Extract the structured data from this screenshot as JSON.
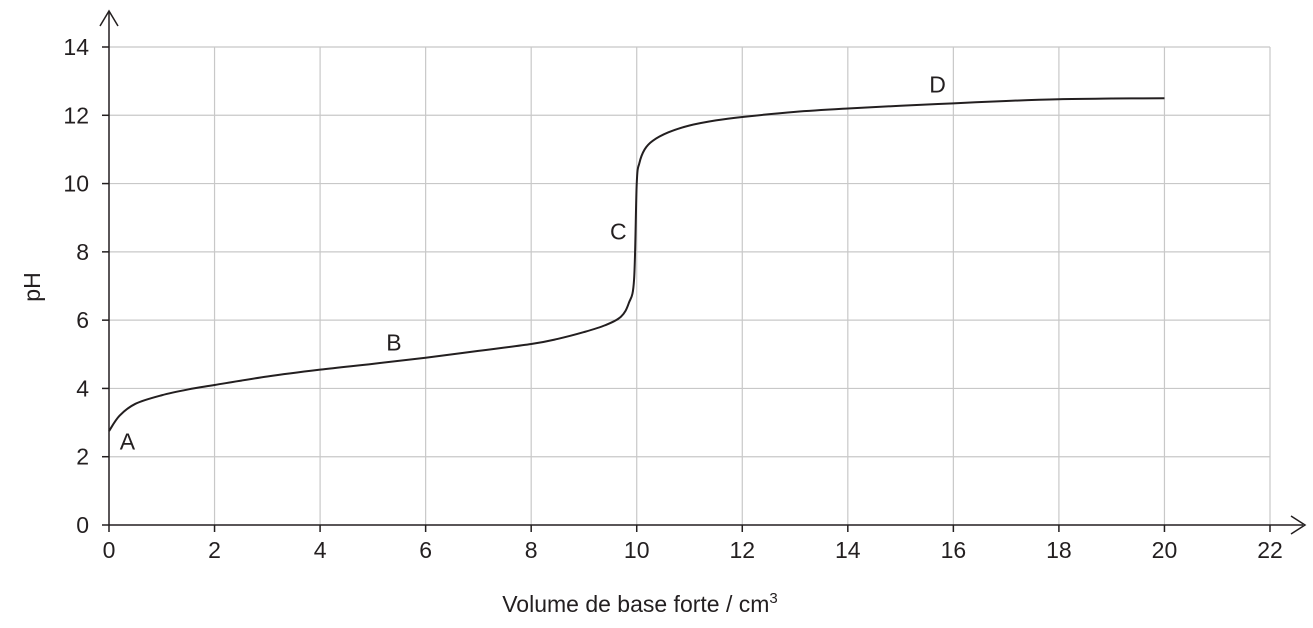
{
  "chart_data": {
    "type": "line",
    "xlabel": "Volume de base forte / cm",
    "xlabel_sup": "3",
    "ylabel": "pH",
    "xlim": [
      0,
      22
    ],
    "ylim": [
      0,
      14
    ],
    "x_ticks": [
      0,
      2,
      4,
      6,
      8,
      10,
      12,
      14,
      16,
      18,
      20,
      22
    ],
    "y_ticks": [
      0,
      2,
      4,
      6,
      8,
      10,
      12,
      14
    ],
    "grid": true,
    "series": [
      {
        "x": [
          0,
          0.2,
          0.5,
          1,
          1.5,
          2,
          3,
          4,
          5,
          6,
          7,
          8,
          8.5,
          9,
          9.4,
          9.7,
          9.85,
          9.95,
          10,
          10.05,
          10.15,
          10.3,
          10.6,
          11,
          11.5,
          12,
          13,
          14,
          15,
          16,
          17,
          18,
          19,
          20
        ],
        "y": [
          2.75,
          3.2,
          3.55,
          3.8,
          3.97,
          4.1,
          4.35,
          4.55,
          4.72,
          4.9,
          5.1,
          5.3,
          5.45,
          5.65,
          5.85,
          6.1,
          6.5,
          7.2,
          10.0,
          10.6,
          11.0,
          11.25,
          11.5,
          11.7,
          11.85,
          11.95,
          12.1,
          12.2,
          12.28,
          12.35,
          12.42,
          12.47,
          12.49,
          12.5
        ]
      }
    ],
    "annotations": [
      {
        "text": "A",
        "x": 0.35,
        "y": 2.45
      },
      {
        "text": "B",
        "x": 5.4,
        "y": 5.35
      },
      {
        "text": "C",
        "x": 9.65,
        "y": 8.6
      },
      {
        "text": "D",
        "x": 15.7,
        "y": 12.9
      }
    ]
  }
}
